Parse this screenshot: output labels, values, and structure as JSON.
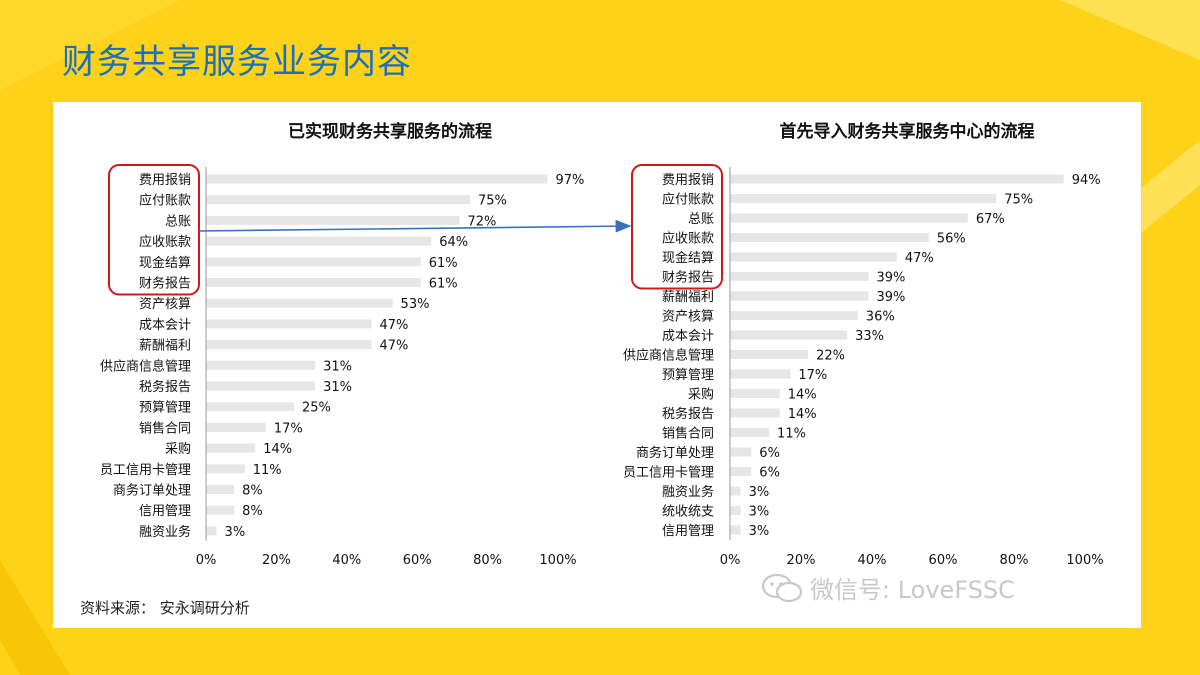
{
  "slide": {
    "title": "财务共享服务业务内容",
    "source": "资料来源：  安永调研分析",
    "watermark": "微信号: LoveFSSC",
    "colors": {
      "background": "#ffd21a",
      "title": "#1a6fc0",
      "bar": "#e6e6e6",
      "highlight": "#d01818",
      "arrow": "#3a6fc4"
    }
  },
  "chart_data": [
    {
      "type": "bar",
      "orientation": "horizontal",
      "title": "已实现财务共享服务的流程",
      "categories": [
        "费用报销",
        "应付账款",
        "总账",
        "应收账款",
        "现金结算",
        "财务报告",
        "资产核算",
        "成本会计",
        "薪酬福利",
        "供应商信息管理",
        "税务报告",
        "预算管理",
        "销售合同",
        "采购",
        "员工信用卡管理",
        "商务订单处理",
        "信用管理",
        "融资业务"
      ],
      "values": [
        97,
        75,
        72,
        64,
        61,
        61,
        53,
        47,
        47,
        31,
        31,
        25,
        17,
        14,
        11,
        8,
        8,
        3
      ],
      "value_labels": [
        "97%",
        "75%",
        "72%",
        "64%",
        "61%",
        "61%",
        "53%",
        "47%",
        "47%",
        "31%",
        "31%",
        "25%",
        "17%",
        "14%",
        "11%",
        "8%",
        "8%",
        "3%"
      ],
      "xlim": [
        0,
        100
      ],
      "xticks": [
        "0%",
        "20%",
        "40%",
        "60%",
        "80%",
        "100%"
      ],
      "highlighted_count": 6,
      "grid": false
    },
    {
      "type": "bar",
      "orientation": "horizontal",
      "title": "首先导入财务共享服务中心的流程",
      "categories": [
        "费用报销",
        "应付账款",
        "总账",
        "应收账款",
        "现金结算",
        "财务报告",
        "薪酬福利",
        "资产核算",
        "成本会计",
        "供应商信息管理",
        "预算管理",
        "采购",
        "税务报告",
        "销售合同",
        "商务订单处理",
        "员工信用卡管理",
        "融资业务",
        "统收统支",
        "信用管理"
      ],
      "values": [
        94,
        75,
        67,
        56,
        47,
        39,
        39,
        36,
        33,
        22,
        17,
        14,
        14,
        11,
        6,
        6,
        3,
        3,
        3
      ],
      "value_labels": [
        "94%",
        "75%",
        "67%",
        "56%",
        "47%",
        "39%",
        "39%",
        "36%",
        "33%",
        "22%",
        "17%",
        "14%",
        "14%",
        "11%",
        "6%",
        "6%",
        "3%",
        "3%",
        "3%"
      ],
      "xlim": [
        0,
        100
      ],
      "xticks": [
        "0%",
        "20%",
        "40%",
        "60%",
        "80%",
        "100%"
      ],
      "highlighted_count": 6,
      "grid": false
    }
  ]
}
